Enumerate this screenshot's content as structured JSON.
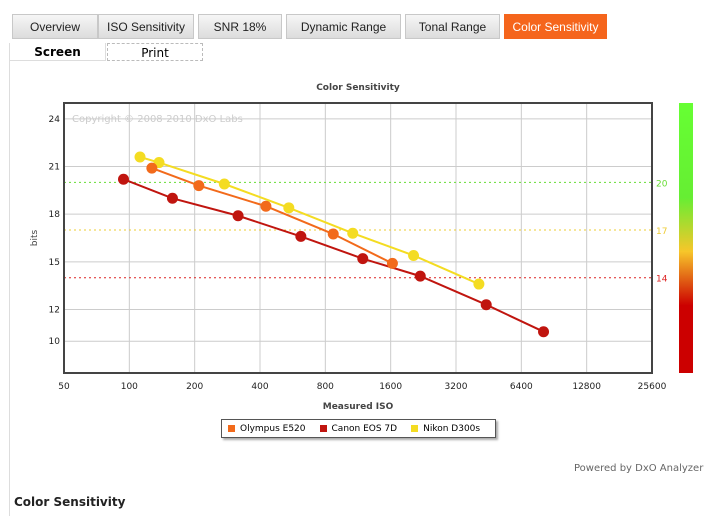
{
  "tabs": [
    {
      "label": "Overview"
    },
    {
      "label": "ISO Sensitivity"
    },
    {
      "label": "SNR 18%"
    },
    {
      "label": "Dynamic Range"
    },
    {
      "label": "Tonal Range"
    },
    {
      "label": "Color Sensitivity",
      "active": true
    }
  ],
  "subtabs": [
    {
      "label": "Screen"
    },
    {
      "label": "Print"
    }
  ],
  "footer": {
    "powered": "Powered by DxO Analyzer",
    "section_title": "Color Sensitivity"
  },
  "colors": {
    "accent": "#f5651c"
  },
  "chart_data": {
    "type": "line",
    "title": "Color Sensitivity",
    "xlabel": "Measured ISO",
    "ylabel": "bits",
    "watermark": "Copyright © 2008-2010 DxO Labs",
    "x_scale": "log2",
    "xlim": [
      50,
      25600
    ],
    "ylim": [
      8,
      25
    ],
    "x_ticks": [
      50,
      100,
      200,
      400,
      800,
      1600,
      3200,
      6400,
      12800,
      25600
    ],
    "y_ticks": [
      24,
      21,
      18,
      15,
      12,
      10
    ],
    "reference_lines": [
      {
        "value": 20,
        "label": "20",
        "color": "#66dd33"
      },
      {
        "value": 17,
        "label": "17",
        "color": "#eecc33"
      },
      {
        "value": 14,
        "label": "14",
        "color": "#dd2222"
      }
    ],
    "legend_position": "bottom-center",
    "series": [
      {
        "name": "Olympus E520",
        "color": "#f26a1b",
        "x": [
          127,
          209,
          426,
          870,
          1630
        ],
        "y": [
          20.9,
          19.8,
          18.5,
          16.75,
          14.9
        ]
      },
      {
        "name": "Canon EOS 7D",
        "color": "#c0150f",
        "x": [
          94,
          158,
          317,
          617,
          1190,
          2190,
          4410,
          8100
        ],
        "y": [
          20.2,
          19.0,
          17.9,
          16.6,
          15.2,
          14.1,
          12.3,
          10.6
        ]
      },
      {
        "name": "Nikon D300s",
        "color": "#f4dc22",
        "x": [
          112,
          137,
          274,
          543,
          1070,
          2040,
          4080
        ],
        "y": [
          21.6,
          21.25,
          19.9,
          18.4,
          16.8,
          15.4,
          13.6
        ]
      }
    ]
  }
}
